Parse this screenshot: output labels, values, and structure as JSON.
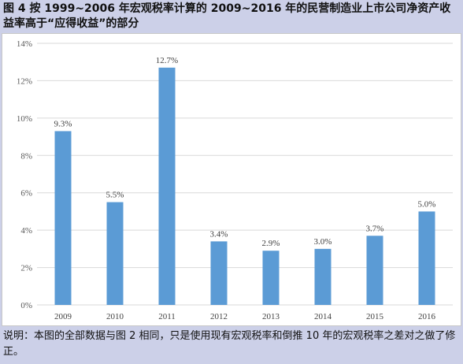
{
  "header": {
    "title": "图 4  按 1999~2006 年宏观税率计算的 2009~2016 年的民营制造业上市公司净资产收益率高于“应得收益”的部分"
  },
  "footer": {
    "note": "说明：本图的全部数据与图 2 相同，只是使用现有宏观税率和倒推 10 年的宏观税率之差对之做了修正。"
  },
  "chart_data": {
    "type": "bar",
    "categories": [
      "2009",
      "2010",
      "2011",
      "2012",
      "2013",
      "2014",
      "2015",
      "2016"
    ],
    "values": [
      9.3,
      5.5,
      12.7,
      3.4,
      2.9,
      3.0,
      3.7,
      5.0
    ],
    "value_labels": [
      "9.3%",
      "5.5%",
      "12.7%",
      "3.4%",
      "2.9%",
      "3.0%",
      "3.7%",
      "5.0%"
    ],
    "y_ticks": [
      0,
      2,
      4,
      6,
      8,
      10,
      12,
      14
    ],
    "y_tick_labels": [
      "0%",
      "2%",
      "4%",
      "6%",
      "8%",
      "10%",
      "12%",
      "14%"
    ],
    "ylim": [
      0,
      14
    ],
    "grid": true,
    "legend": "none",
    "bar_color": "#5b9bd5",
    "grid_color": "#d9d9d9"
  }
}
